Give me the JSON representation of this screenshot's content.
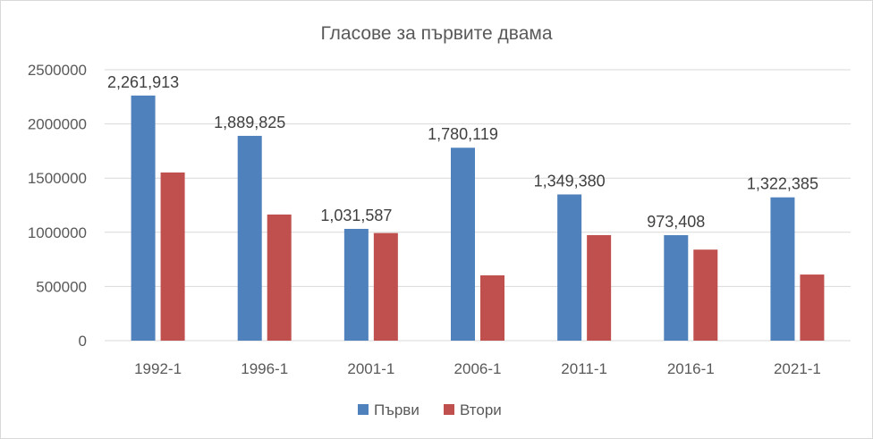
{
  "chart_data": {
    "type": "bar",
    "title": "Гласове за първите двама",
    "categories": [
      "1992-1",
      "1996-1",
      "2001-1",
      "2006-1",
      "2011-1",
      "2016-1",
      "2021-1"
    ],
    "series": [
      {
        "name": "Първи",
        "color": "#4f81bd",
        "values": [
          2261913,
          1889825,
          1031587,
          1780119,
          1349380,
          973408,
          1322385
        ],
        "data_labels": [
          "2,261,913",
          "1,889,825",
          "1,031,587",
          "1,780,119",
          "1,349,380",
          "973,408",
          "1,322,385"
        ]
      },
      {
        "name": "Втори",
        "color": "#c0504d",
        "values": [
          1552000,
          1164000,
          993000,
          603000,
          974000,
          840000,
          610000
        ]
      }
    ],
    "ylim": [
      0,
      2500000
    ],
    "yticks": [
      "0",
      "500000",
      "1000000",
      "1500000",
      "2000000",
      "2500000"
    ],
    "ytick_values": [
      0,
      500000,
      1000000,
      1500000,
      2000000,
      2500000
    ],
    "grid": true,
    "legend_position": "bottom"
  }
}
